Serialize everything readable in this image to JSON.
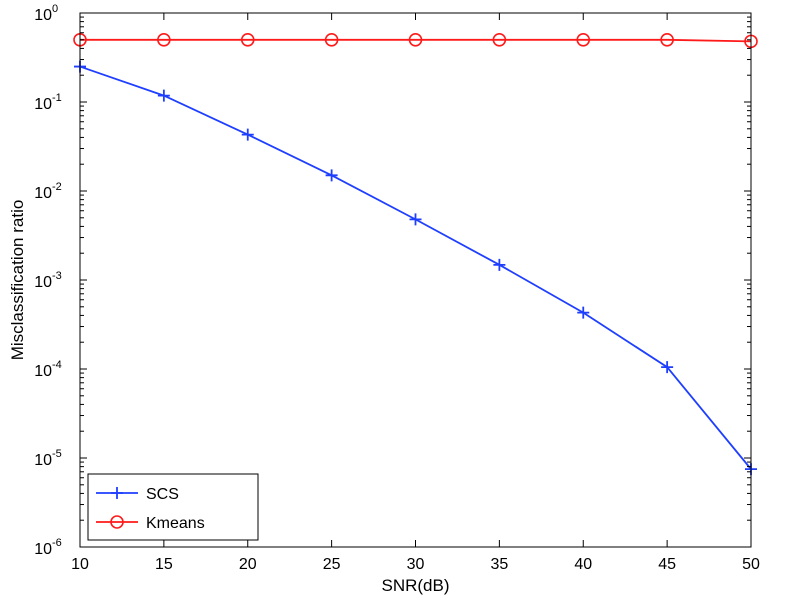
{
  "chart_data": {
    "type": "line",
    "xlabel": "SNR(dB)",
    "ylabel": "Misclassification ratio",
    "x": [
      10,
      15,
      20,
      25,
      30,
      35,
      40,
      45,
      50
    ],
    "xlim": [
      10,
      50
    ],
    "xticks": [
      10,
      15,
      20,
      25,
      30,
      35,
      40,
      45,
      50
    ],
    "yscale": "log",
    "ylim": [
      1e-06,
      1
    ],
    "yticks": [
      {
        "base": "10",
        "exp": "0"
      },
      {
        "base": "10",
        "exp": "-1"
      },
      {
        "base": "10",
        "exp": "-2"
      },
      {
        "base": "10",
        "exp": "-3"
      },
      {
        "base": "10",
        "exp": "-4"
      },
      {
        "base": "10",
        "exp": "-5"
      },
      {
        "base": "10",
        "exp": "-6"
      }
    ],
    "grid": false,
    "legend_position": "bottom-left",
    "series": [
      {
        "name": "SCS",
        "color": "#1f3fff",
        "marker": "plus",
        "values": [
          0.25,
          0.118,
          0.043,
          0.015,
          0.0048,
          0.00148,
          0.00043,
          0.000105,
          7.5e-06
        ]
      },
      {
        "name": "Kmeans",
        "color": "#ff1a1a",
        "marker": "circle",
        "values": [
          0.5,
          0.5,
          0.5,
          0.5,
          0.5,
          0.5,
          0.5,
          0.5,
          0.48
        ]
      }
    ]
  }
}
